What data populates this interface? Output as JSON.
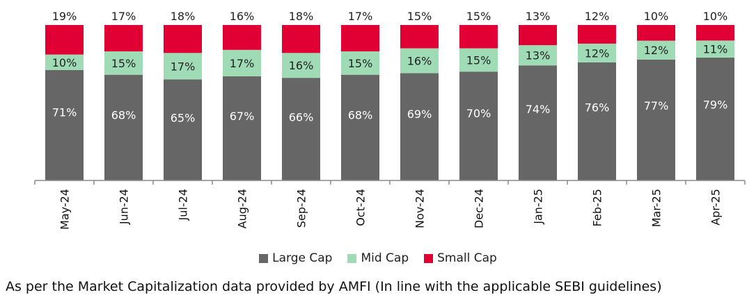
{
  "chart_data": {
    "type": "bar",
    "stacked": true,
    "categories": [
      "May-24",
      "Jun-24",
      "Jul-24",
      "Aug-24",
      "Sep-24",
      "Oct-24",
      "Nov-24",
      "Dec-24",
      "Jan-25",
      "Feb-25",
      "Mar-25",
      "Apr-25"
    ],
    "series": [
      {
        "name": "Large Cap",
        "color": "#666666",
        "label_color": "#ffffff",
        "values": [
          71,
          68,
          65,
          67,
          66,
          68,
          69,
          70,
          74,
          76,
          77,
          79
        ]
      },
      {
        "name": "Mid Cap",
        "color": "#9fdcb6",
        "label_color": "#222222",
        "values": [
          10,
          15,
          17,
          17,
          16,
          15,
          16,
          15,
          13,
          12,
          12,
          11
        ]
      },
      {
        "name": "Small Cap",
        "color": "#e00034",
        "label_color": "#222222",
        "values": [
          19,
          17,
          18,
          16,
          18,
          17,
          15,
          15,
          13,
          12,
          10,
          10
        ]
      }
    ],
    "value_suffix": "%",
    "ylim": [
      0,
      100
    ],
    "grid": false,
    "legend_position": "bottom-center",
    "xtick_rotation": "vertical"
  },
  "legend": [
    {
      "label": "Large Cap",
      "color": "#666666"
    },
    {
      "label": "Mid Cap",
      "color": "#9fdcb6"
    },
    {
      "label": "Small Cap",
      "color": "#e00034"
    }
  ],
  "footnote": "As per the Market Capitalization data provided by AMFI (In line with the applicable SEBI guidelines)"
}
